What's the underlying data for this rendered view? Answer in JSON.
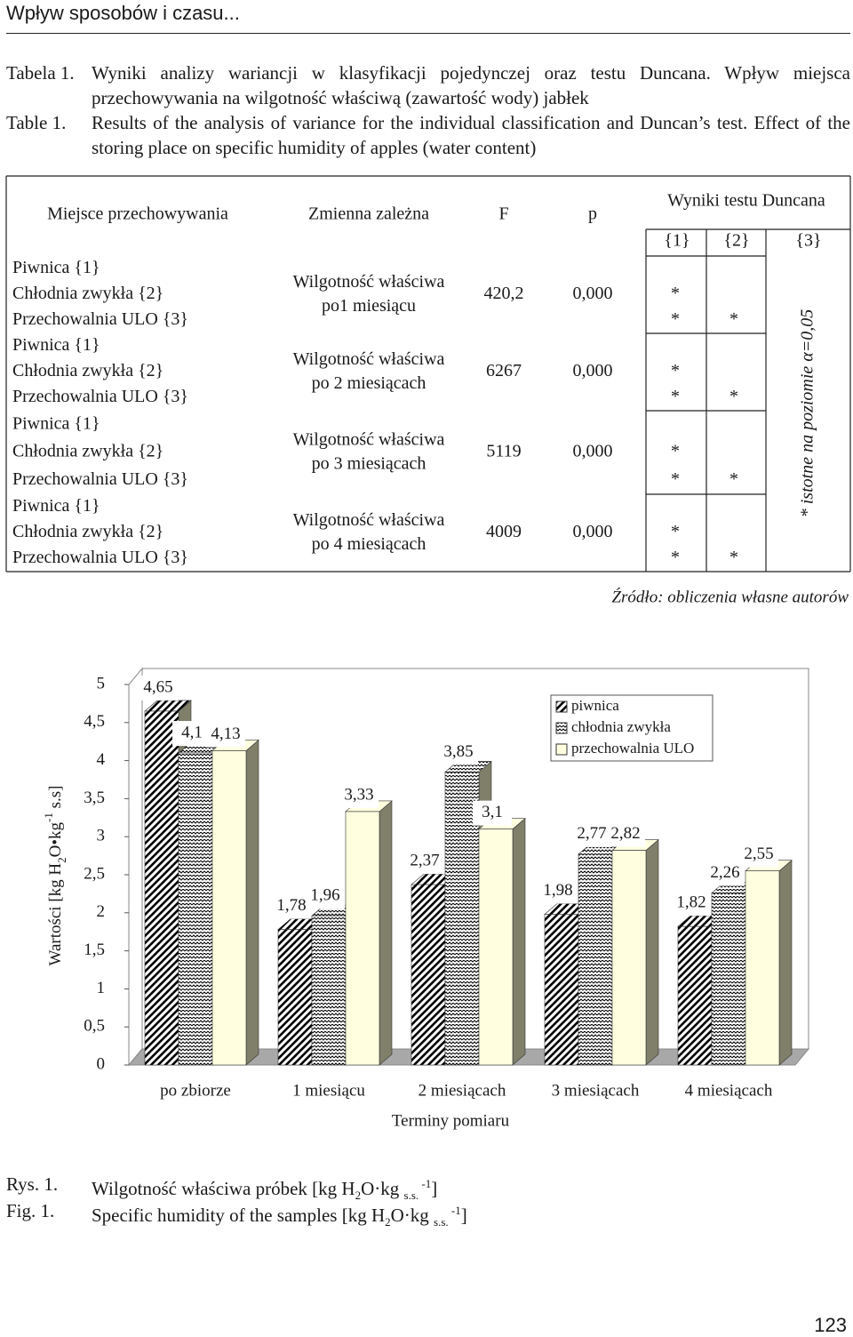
{
  "header": {
    "title": "Wpływ sposobów i czasu..."
  },
  "table_caption": {
    "pl_label": "Tabela 1.",
    "pl_text": "Wyniki analizy wariancji w klasyfikacji pojedynczej oraz testu Duncana. Wpływ miejsca przechowywania na wilgotność właściwą (zawartość wody) jabłek",
    "en_label": "Table 1.",
    "en_text": "Results of the analysis of variance for the individual classification and Duncan’s test. Effect of the storing place on specific humidity of apples (water content)"
  },
  "table": {
    "headers": [
      "Miejsce przechowywania",
      "Zmienna zależna",
      "F",
      "p",
      "Wyniki testu Duncana"
    ],
    "duncan_groups": [
      "{1}",
      "{2}",
      "{3}"
    ],
    "groups": [
      {
        "places": [
          "Piwnica {1}",
          "Chłodnia zwykła {2}",
          "Przechowalnia ULO {3}"
        ],
        "variable": [
          "Wilgotność właściwa",
          "po1 miesiącu"
        ],
        "F": "420,2",
        "p": "0,000",
        "stars": [
          [
            null,
            null
          ],
          [
            "*",
            null
          ],
          [
            "*",
            "*"
          ]
        ]
      },
      {
        "places": [
          "Piwnica {1}",
          "Chłodnia zwykła {2}",
          "Przechowalnia ULO {3}"
        ],
        "variable": [
          "Wilgotność właściwa",
          "po 2 miesiącach"
        ],
        "F": "6267",
        "p": "0,000",
        "stars": [
          [
            null,
            null
          ],
          [
            "*",
            null
          ],
          [
            "*",
            "*"
          ]
        ]
      },
      {
        "places": [
          "Piwnica {1}",
          "Chłodnia zwykła {2}",
          "Przechowalnia ULO {3}"
        ],
        "variable": [
          "Wilgotność właściwa",
          "po 3 miesiącach"
        ],
        "F": "5119",
        "p": "0,000",
        "stars": [
          [
            null,
            null
          ],
          [
            "*",
            null
          ],
          [
            "*",
            "*"
          ]
        ]
      },
      {
        "places": [
          "Piwnica {1}",
          "Chłodnia zwykła {2}",
          "Przechowalnia ULO {3}"
        ],
        "variable": [
          "Wilgotność właściwa",
          "po 4 miesiącach"
        ],
        "F": "4009",
        "p": "0,000",
        "stars": [
          [
            null,
            null
          ],
          [
            "*",
            null
          ],
          [
            "*",
            "*"
          ]
        ]
      }
    ],
    "note": "* istotne na poziomie α=0,05"
  },
  "source": "Źródło: obliczenia własne autorów",
  "chart_data": {
    "type": "bar",
    "x_label": "Terminy pomiaru",
    "y_label": [
      "Wartości [kg H",
      "2",
      "O•kg",
      "-1",
      " s.s]"
    ],
    "categories": [
      "po zbiorze",
      "1 miesiącu",
      "2 miesiącach",
      "3 miesiącach",
      "4 miesiącach"
    ],
    "series": [
      {
        "name": "piwnica",
        "color": "#000000",
        "pattern": "diagonal",
        "values": [
          4.65,
          1.78,
          2.37,
          1.98,
          1.82
        ],
        "value_labels": [
          "4,65",
          "1,78",
          "2,37",
          "1,98",
          "1,82"
        ]
      },
      {
        "name": "chłodnia zwykła",
        "color": "#000000",
        "pattern": "zigzag",
        "values": [
          4.1,
          1.96,
          3.85,
          2.77,
          2.26
        ],
        "value_labels": [
          "4,1",
          "1,96",
          "3,85",
          "2,77",
          "2,26"
        ]
      },
      {
        "name": "przechowalnia ULO",
        "color": "#ffffe0",
        "pattern": "solid",
        "values": [
          4.13,
          3.33,
          3.1,
          2.82,
          2.55
        ],
        "value_labels": [
          "4,13",
          "3,33",
          "3,1",
          "2,82",
          "2,55"
        ]
      }
    ],
    "ylim": [
      0,
      5
    ],
    "yticks": [
      0,
      {
        "value": 0.5,
        "label": "0,5"
      },
      1,
      {
        "value": 1.5,
        "label": "1,5"
      },
      2,
      {
        "value": 2.5,
        "label": "2,5"
      },
      3,
      {
        "value": 3.5,
        "label": "3,5"
      },
      4,
      {
        "value": 4.5,
        "label": "4,5"
      },
      5
    ],
    "legend": "top-right"
  },
  "figure_caption": {
    "pl_label": "Rys. 1.",
    "pl_parts": [
      "Wilgotność właściwa próbek [kg H",
      "2",
      "O·kg ",
      "s.s.",
      " -1",
      "]"
    ],
    "en_label": "Fig. 1.",
    "en_parts": [
      "Specific humidity of the samples [kg H",
      "2",
      "O·kg ",
      "s.s.",
      " -1",
      "]"
    ]
  },
  "page_number": "123"
}
